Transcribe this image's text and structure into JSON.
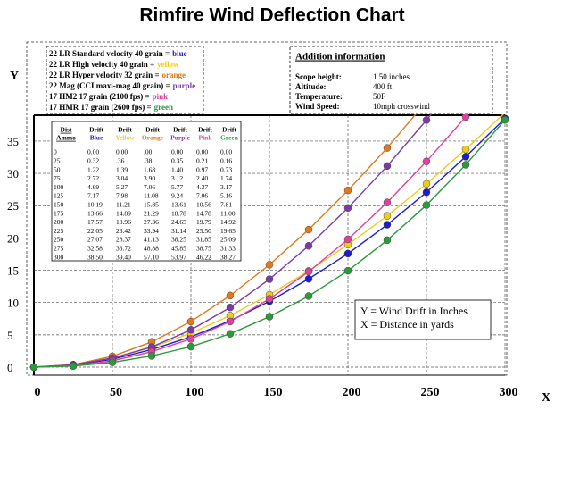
{
  "chart_data": {
    "type": "line",
    "title": "Rimfire Wind Deflection Chart",
    "x_label": "X",
    "y_label": "Y",
    "x": [
      0,
      25,
      50,
      75,
      100,
      125,
      150,
      175,
      200,
      225,
      250,
      275,
      300
    ],
    "xlim": [
      0,
      300
    ],
    "xticks": [
      0,
      50,
      100,
      150,
      200,
      250,
      300
    ],
    "ylim": [
      0,
      39
    ],
    "yticks": [
      0,
      5,
      10,
      15,
      20,
      25,
      30,
      35
    ],
    "grid": true,
    "series": [
      {
        "name": "22 LR Standard velocity 40 grain =",
        "color_label": "blue",
        "color": "#1c1ccc",
        "header": [
          "Drift",
          "Blue"
        ],
        "values": [
          0,
          0.32,
          1.22,
          2.72,
          4.69,
          7.17,
          10.19,
          13.66,
          17.57,
          22.05,
          27.07,
          32.58,
          38.5
        ],
        "value_labels": [
          "0.00",
          "0.32",
          "1.22",
          "2.72",
          "4.69",
          "7.17",
          "10.19",
          "13.66",
          "17.57",
          "22.05",
          "27.07",
          "32.58",
          "38.50"
        ]
      },
      {
        "name": "22 LR High velocity 40 grain =",
        "color_label": "yellow",
        "color": "#eccd1c",
        "header": [
          "Drift",
          "Yellow"
        ],
        "values": [
          0,
          0.36,
          1.39,
          3.04,
          5.27,
          7.98,
          11.21,
          14.89,
          18.96,
          23.42,
          28.37,
          33.72,
          39.4
        ],
        "value_labels": [
          "0.00",
          ".36",
          "1.39",
          "3.04",
          "5.27",
          "7.98",
          "11.21",
          "14.89",
          "18.96",
          "23.42",
          "28.37",
          "33.72",
          "39.40"
        ]
      },
      {
        "name": "22 LR Hyper velocity 32 grain =",
        "color_label": "orange",
        "color": "#e07a1a",
        "header": [
          "Drift",
          "Orange"
        ],
        "values": [
          0,
          0.38,
          1.68,
          3.9,
          7.06,
          11.08,
          15.85,
          21.29,
          27.36,
          33.94,
          41.13,
          48.88,
          57.1
        ],
        "value_labels": [
          ".00",
          ".38",
          "1.68",
          "3.90",
          "7.06",
          "11.08",
          "15.85",
          "21.29",
          "27.36",
          "33.94",
          "41.13",
          "48.88",
          "57.10"
        ]
      },
      {
        "name": "22 Mag (CCI maxi-mag 40 grain) =",
        "color_label": "purple",
        "color": "#7b3aa8",
        "header": [
          "Drift",
          "Purple"
        ],
        "values": [
          0,
          0.35,
          1.4,
          3.12,
          5.77,
          9.24,
          13.61,
          18.78,
          24.65,
          31.14,
          38.25,
          45.85,
          53.97
        ],
        "value_labels": [
          "0.00",
          "0.35",
          "1.40",
          "3.12",
          "5.77",
          "9.24",
          "13.61",
          "18.78",
          "24.65",
          "31.14",
          "38.25",
          "45.85",
          "53.97"
        ]
      },
      {
        "name": "17 HM2 17 grain (2100 fps) =",
        "color_label": "pink",
        "color": "#e0409e",
        "header": [
          "Drift",
          "Pink"
        ],
        "values": [
          0,
          0.21,
          0.97,
          2.4,
          4.37,
          7.06,
          10.56,
          14.78,
          19.79,
          25.5,
          31.85,
          38.75,
          46.22
        ],
        "value_labels": [
          "0.00",
          "0.21",
          "0.97",
          "2.40",
          "4.37",
          "7.06",
          "10.56",
          "14.78",
          "19.79",
          "25.50",
          "31.85",
          "38.75",
          "46.22"
        ]
      },
      {
        "name": "17 HMR 17 grain (2600 fps) =",
        "color_label": "green",
        "color": "#2a9a3a",
        "header": [
          "Drift",
          "Green"
        ],
        "values": [
          0,
          0.16,
          0.73,
          1.74,
          3.17,
          5.16,
          7.81,
          11,
          14.92,
          19.65,
          25.09,
          31.33,
          38.27
        ],
        "value_labels": [
          "0.00",
          "0.16",
          "0.73",
          "1.74",
          "3.17",
          "5.16",
          "7.81",
          "11.00",
          "14.92",
          "19.65",
          "25.09",
          "31.33",
          "38.27"
        ]
      }
    ],
    "table_dist_header": [
      "Dist",
      "Ammo"
    ],
    "info": {
      "title": "Addition information",
      "rows": [
        [
          "Scope height:",
          "1.50 inches"
        ],
        [
          "Altitude:",
          "400 ft"
        ],
        [
          "Temperature:",
          "50F"
        ],
        [
          "Wind Speed:",
          "10mph crosswind"
        ]
      ]
    },
    "annotations": [
      "Y = Wind Drift in Inches",
      "X = Distance in yards"
    ]
  }
}
